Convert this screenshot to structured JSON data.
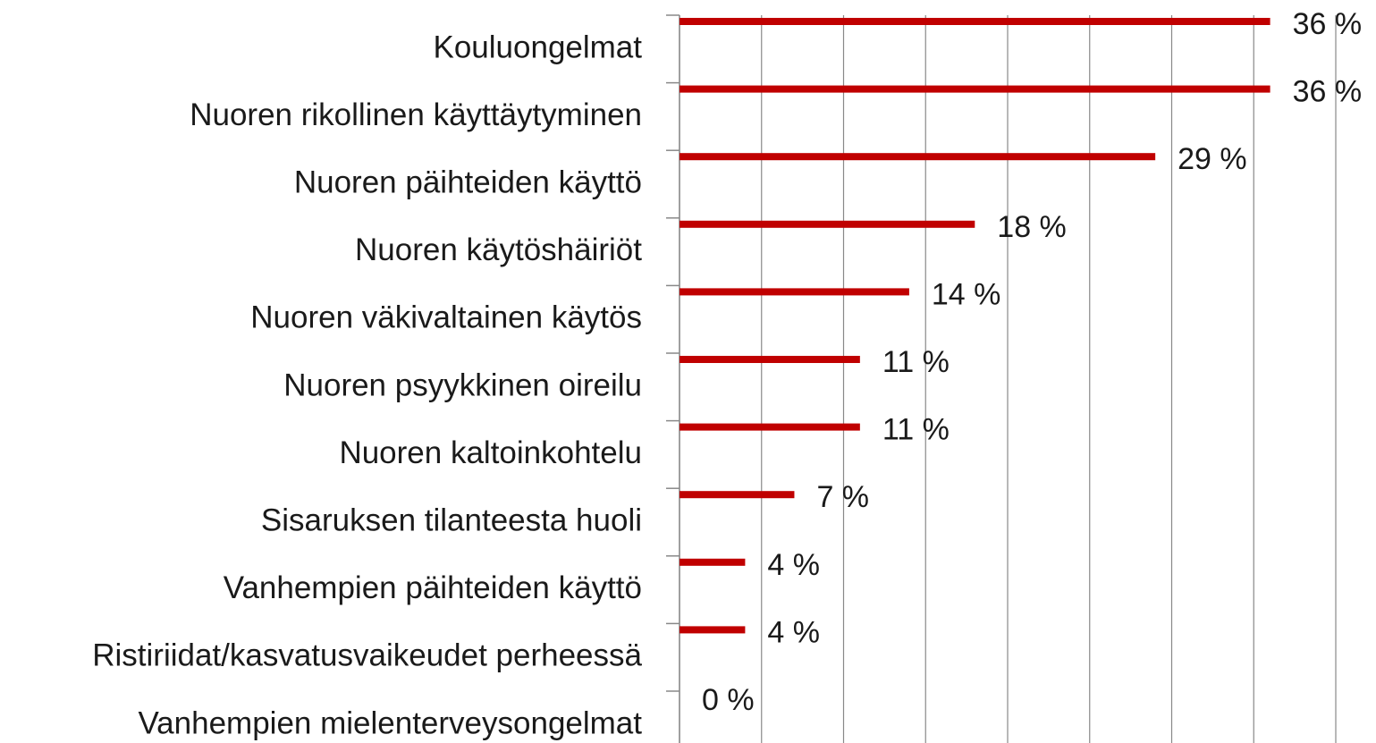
{
  "chart_data": {
    "type": "bar",
    "orientation": "horizontal",
    "color": "#c00000",
    "grid": true,
    "categories": [
      "Kouluongelmat",
      "Nuoren rikollinen käyttäytyminen",
      "Nuoren päihteiden käyttö",
      "Nuoren käytöshäiriöt",
      "Nuoren väkivaltainen käytös",
      "Nuoren psyykkinen oireilu",
      "Nuoren kaltoinkohtelu",
      "Sisaruksen tilanteesta huoli",
      "Vanhempien päihteiden käyttö",
      "Ristiriidat/kasvatusvaikeudet perheessä",
      "Vanhempien mielenterveysongelmat"
    ],
    "values": [
      36,
      36,
      29,
      18,
      14,
      11,
      11,
      7,
      4,
      4,
      0
    ],
    "value_labels": [
      "36 %",
      "36 %",
      "29 %",
      "18 %",
      "14 %",
      "11 %",
      "11 %",
      "7 %",
      "4 %",
      "4 %",
      "0 %"
    ],
    "xlim": [
      0,
      40
    ],
    "xticks": [
      0,
      5,
      10,
      15,
      20,
      25,
      30,
      35,
      40
    ]
  }
}
